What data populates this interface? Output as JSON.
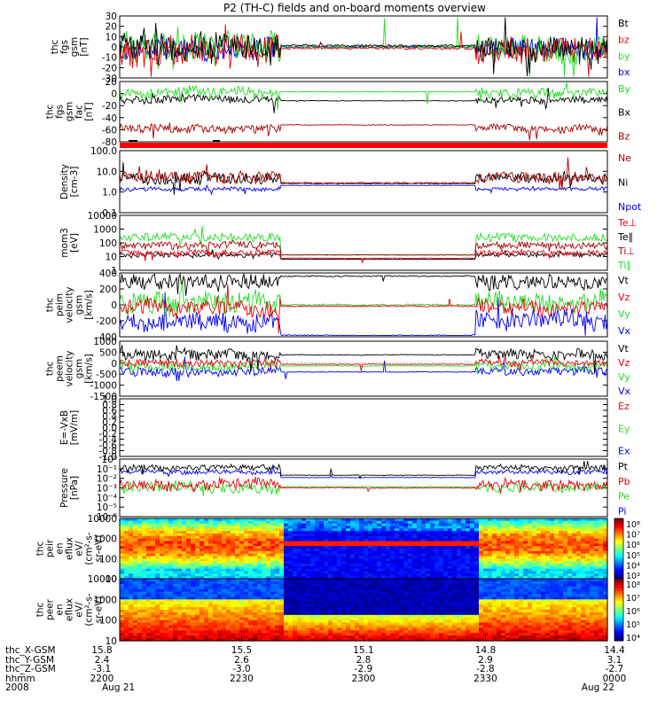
{
  "title": "P2 (TH-C) fields and on-board moments overview",
  "colors": {
    "black": "#000000",
    "red": "#e8000b",
    "green": "#22dd22",
    "blue": "#0000ee",
    "darkred": "#a80000"
  },
  "chart_data": [
    {
      "type": "line",
      "panel": "fgs",
      "ylabel_lines": [
        "thc",
        "fgs",
        "gsm",
        "[nT]"
      ],
      "ylim": [
        -30,
        30
      ],
      "yticks": [
        "30",
        "20",
        "10",
        "0",
        "-10",
        "-20",
        "-30"
      ],
      "series": [
        {
          "name": "Bt",
          "color": "#000000"
        },
        {
          "name": "bz",
          "color": "#e8000b"
        },
        {
          "name": "by",
          "color": "#22dd22"
        },
        {
          "name": "bx",
          "color": "#0000ee"
        }
      ]
    },
    {
      "type": "line",
      "panel": "fgs-gsm-fac",
      "ylabel_lines": [
        "thc",
        "fgs",
        "gsm",
        "fac",
        "[nT]"
      ],
      "ylim": [
        -80,
        20
      ],
      "yticks": [
        "20",
        "0",
        "-20",
        "-40",
        "-60",
        "-80"
      ],
      "series": [
        {
          "name": "By",
          "color": "#22dd22"
        },
        {
          "name": "Bx",
          "color": "#000000"
        },
        {
          "name": "Bz",
          "color": "#a80000"
        }
      ]
    },
    {
      "type": "line",
      "panel": "density",
      "scale": "log",
      "ylabel_lines": [
        "Density",
        "[cm-3]"
      ],
      "ylim": [
        0.1,
        100
      ],
      "yticks": [
        "100.0",
        "10.0",
        "1.0",
        "0.1"
      ],
      "series": [
        {
          "name": "Ne",
          "color": "#a80000"
        },
        {
          "name": "Ni",
          "color": "#000000"
        },
        {
          "name": "Npot",
          "color": "#0000ee"
        }
      ]
    },
    {
      "type": "line",
      "panel": "temperature",
      "scale": "log",
      "ylabel_lines": [
        "mom3",
        "[eV]"
      ],
      "ylim": [
        1,
        10000
      ],
      "yticks": [
        "10000",
        "1000",
        "100",
        "10",
        "1"
      ],
      "series": [
        {
          "name": "Te⊥",
          "color": "#e8000b"
        },
        {
          "name": "Te∥",
          "color": "#000000"
        },
        {
          "name": "Ti⊥",
          "color": "#a80000"
        },
        {
          "name": "Ti∥",
          "color": "#22dd22"
        }
      ]
    },
    {
      "type": "line",
      "panel": "peim-velocity",
      "ylabel_lines": [
        "thc",
        "peim",
        "velocity",
        "gsm",
        "[km/s]"
      ],
      "ylim": [
        -400,
        400
      ],
      "yticks": [
        "400",
        "200",
        "0",
        "-200",
        "-400"
      ],
      "series": [
        {
          "name": "Vt",
          "color": "#000000"
        },
        {
          "name": "Vz",
          "color": "#e8000b"
        },
        {
          "name": "Vy",
          "color": "#22dd22"
        },
        {
          "name": "Vx",
          "color": "#0000ee"
        }
      ]
    },
    {
      "type": "line",
      "panel": "peem-velocity",
      "ylabel_lines": [
        "thc",
        "peem",
        "velocity",
        "gsm",
        "[km/s]"
      ],
      "ylim": [
        -1500,
        1000
      ],
      "yticks": [
        "1000",
        "500",
        "0",
        "-500",
        "-1000",
        "-1500"
      ],
      "series": [
        {
          "name": "Vt",
          "color": "#000000"
        },
        {
          "name": "Vz",
          "color": "#e8000b"
        },
        {
          "name": "Vy",
          "color": "#22dd22"
        },
        {
          "name": "Vx",
          "color": "#0000ee"
        }
      ]
    },
    {
      "type": "line",
      "panel": "e-vxb",
      "ylabel_lines": [
        "E=-VxB",
        "[mV/m]"
      ],
      "ylim": [
        -1.0,
        1.0
      ],
      "yticks": [
        "1.0",
        "0.8",
        "0.6",
        "0.4",
        "0.2",
        "0.0",
        "-0.2",
        "-0.4",
        "-0.6",
        "-0.8",
        "-1.0"
      ],
      "series": [
        {
          "name": "Ez",
          "color": "#e8000b"
        },
        {
          "name": "Ey",
          "color": "#22dd22"
        },
        {
          "name": "Ex",
          "color": "#0000ee"
        }
      ]
    },
    {
      "type": "line",
      "panel": "pressure",
      "scale": "log",
      "ylabel_lines": [
        "Pressure",
        "[nPa]"
      ],
      "ylim": [
        1e-06,
        1
      ],
      "yticks": [
        "10⁰",
        "10⁻¹",
        "10⁻²",
        "10⁻³",
        "10⁻⁴",
        "10⁻⁵",
        "10⁻⁶"
      ],
      "series": [
        {
          "name": "Pt",
          "color": "#000000"
        },
        {
          "name": "Pb",
          "color": "#e8000b"
        },
        {
          "name": "Pe",
          "color": "#22dd22"
        },
        {
          "name": "Pi",
          "color": "#0000ee"
        }
      ]
    },
    {
      "type": "heatmap",
      "panel": "peir-spectrogram",
      "ylabel_lines": [
        "thc",
        "peir",
        "en",
        "eflux",
        "eV/",
        "(cm²-s-",
        "sr-eV)"
      ],
      "ylim": [
        10,
        10000
      ],
      "yticks": [
        "10000",
        "1000",
        "100",
        "10"
      ],
      "colorbar_ticks": [
        "10⁸",
        "10⁷",
        "10⁶",
        "10⁵",
        "10⁴",
        "10³"
      ]
    },
    {
      "type": "heatmap",
      "panel": "peer-spectrogram",
      "ylabel_lines": [
        "thc",
        "peer",
        "en",
        "eflux",
        "eV/",
        "(cm²-s-",
        "sr-eV)"
      ],
      "ylim": [
        10,
        10000
      ],
      "yticks": [
        "10000",
        "1000",
        "100",
        "10"
      ],
      "colorbar_ticks": [
        "10⁸",
        "10⁷",
        "10⁶",
        "10⁵",
        "10⁴"
      ]
    }
  ],
  "xaxis": {
    "row_labels": [
      "thc_X-GSM",
      "thc_Y-GSM",
      "thc_Z-GSM",
      "hhmm",
      "2008"
    ],
    "ticks": [
      {
        "rows": [
          "15.8",
          "2.4",
          "-3.1",
          "2200",
          "Aug 21"
        ]
      },
      {
        "rows": [
          "15.5",
          "2.6",
          "-3.0",
          "2230",
          ""
        ]
      },
      {
        "rows": [
          "15.1",
          "2.8",
          "-2.9",
          "2300",
          ""
        ]
      },
      {
        "rows": [
          "14.8",
          "2.9",
          "-2.8",
          "2330",
          ""
        ]
      },
      {
        "rows": [
          "14.4",
          "3.1",
          "-2.7",
          "0000",
          "Aug 22"
        ]
      }
    ]
  }
}
